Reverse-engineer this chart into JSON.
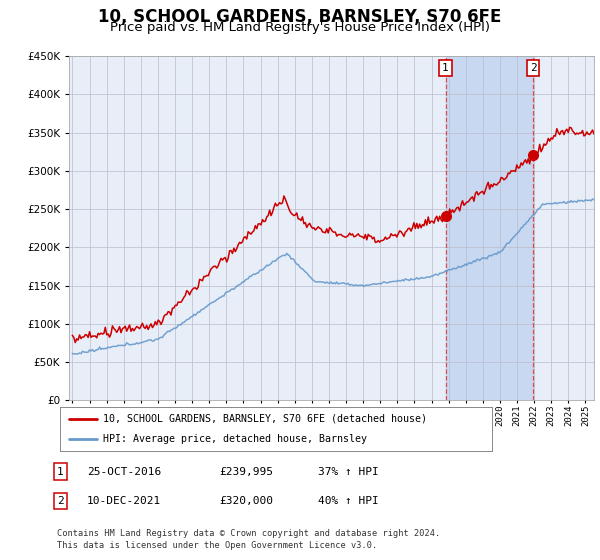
{
  "title": "10, SCHOOL GARDENS, BARNSLEY, S70 6FE",
  "subtitle": "Price paid vs. HM Land Registry's House Price Index (HPI)",
  "footer": "Contains HM Land Registry data © Crown copyright and database right 2024.\nThis data is licensed under the Open Government Licence v3.0.",
  "legend_line1": "10, SCHOOL GARDENS, BARNSLEY, S70 6FE (detached house)",
  "legend_line2": "HPI: Average price, detached house, Barnsley",
  "sale1_date": "25-OCT-2016",
  "sale1_price": "£239,995",
  "sale1_hpi": "37% ↑ HPI",
  "sale1_year": 2016.82,
  "sale1_value": 239995,
  "sale2_date": "10-DEC-2021",
  "sale2_price": "£320,000",
  "sale2_hpi": "40% ↑ HPI",
  "sale2_year": 2021.95,
  "sale2_value": 320000,
  "ylim": [
    0,
    450000
  ],
  "xlim_start": 1994.8,
  "xlim_end": 2025.5,
  "plot_bg_color": "#e8eef8",
  "shade_color": "#c8d8f0",
  "red_color": "#cc0000",
  "blue_color": "#6699cc",
  "grid_color": "#bbbbcc",
  "title_fontsize": 12,
  "subtitle_fontsize": 9.5
}
